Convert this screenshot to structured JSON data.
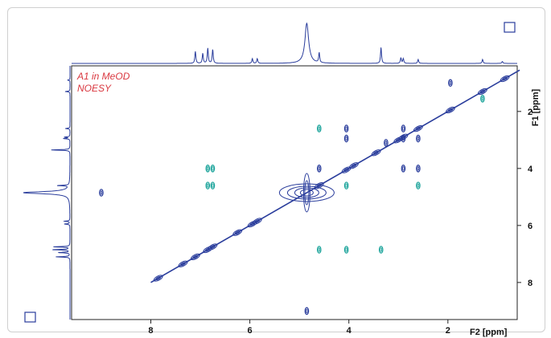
{
  "chart_data": {
    "type": "contour",
    "title": [
      "A1 in MeOD",
      "NOESY"
    ],
    "xlabel": "F2 [ppm]",
    "ylabel": "F1 [ppm]",
    "xlim": [
      9.6,
      0.6
    ],
    "ylim": [
      0.4,
      9.3
    ],
    "x_ticks": [
      8,
      6,
      4,
      2
    ],
    "y_ticks": [
      2,
      4,
      6,
      8
    ],
    "diagonal_color": "#2a3d9c",
    "positive_color": "#2a3d9c",
    "negative_color": "#1aa39a",
    "projection_color": "#2a3d9c",
    "diagonal_peaks": [
      {
        "x": 7.85,
        "y": 7.85
      },
      {
        "x": 7.35,
        "y": 7.35
      },
      {
        "x": 7.1,
        "y": 7.1
      },
      {
        "x": 6.85,
        "y": 6.85
      },
      {
        "x": 6.75,
        "y": 6.75
      },
      {
        "x": 6.25,
        "y": 6.25
      },
      {
        "x": 5.95,
        "y": 5.95
      },
      {
        "x": 5.85,
        "y": 5.85
      },
      {
        "x": 4.85,
        "y": 4.85
      },
      {
        "x": 4.6,
        "y": 4.6
      },
      {
        "x": 4.05,
        "y": 4.05
      },
      {
        "x": 3.9,
        "y": 3.9
      },
      {
        "x": 3.45,
        "y": 3.45
      },
      {
        "x": 3.0,
        "y": 3.0
      },
      {
        "x": 2.9,
        "y": 2.9
      },
      {
        "x": 2.6,
        "y": 2.6
      },
      {
        "x": 1.95,
        "y": 1.95
      },
      {
        "x": 1.3,
        "y": 1.3
      },
      {
        "x": 0.85,
        "y": 0.85
      }
    ],
    "cross_peaks": [
      {
        "x": 4.6,
        "y": 2.6,
        "sign": "negative"
      },
      {
        "x": 4.05,
        "y": 2.6,
        "sign": "positive"
      },
      {
        "x": 4.05,
        "y": 2.95,
        "sign": "positive"
      },
      {
        "x": 2.9,
        "y": 2.6,
        "sign": "positive"
      },
      {
        "x": 2.9,
        "y": 2.95,
        "sign": "positive"
      },
      {
        "x": 2.6,
        "y": 2.95,
        "sign": "positive"
      },
      {
        "x": 3.25,
        "y": 3.1,
        "sign": "positive"
      },
      {
        "x": 6.85,
        "y": 4.0,
        "sign": "negative"
      },
      {
        "x": 6.75,
        "y": 4.0,
        "sign": "negative"
      },
      {
        "x": 6.85,
        "y": 4.6,
        "sign": "negative"
      },
      {
        "x": 6.75,
        "y": 4.6,
        "sign": "negative"
      },
      {
        "x": 4.6,
        "y": 4.0,
        "sign": "positive"
      },
      {
        "x": 4.05,
        "y": 4.6,
        "sign": "negative"
      },
      {
        "x": 2.9,
        "y": 4.0,
        "sign": "positive"
      },
      {
        "x": 2.6,
        "y": 4.0,
        "sign": "positive"
      },
      {
        "x": 2.6,
        "y": 4.6,
        "sign": "negative"
      },
      {
        "x": 4.6,
        "y": 6.85,
        "sign": "negative"
      },
      {
        "x": 4.05,
        "y": 6.85,
        "sign": "negative"
      },
      {
        "x": 3.35,
        "y": 6.85,
        "sign": "negative"
      },
      {
        "x": 9.0,
        "y": 4.85,
        "sign": "positive"
      },
      {
        "x": 4.85,
        "y": 9.0,
        "sign": "positive"
      },
      {
        "x": 1.3,
        "y": 1.55,
        "sign": "negative"
      },
      {
        "x": 1.95,
        "y": 1.0,
        "sign": "positive"
      }
    ],
    "projection_peaks": [
      {
        "ppm": 7.1,
        "height": 0.3
      },
      {
        "ppm": 6.95,
        "height": 0.25
      },
      {
        "ppm": 6.85,
        "height": 0.38
      },
      {
        "ppm": 6.75,
        "height": 0.35
      },
      {
        "ppm": 5.95,
        "height": 0.12
      },
      {
        "ppm": 5.85,
        "height": 0.12
      },
      {
        "ppm": 4.85,
        "height": 1.0
      },
      {
        "ppm": 4.6,
        "height": 0.25
      },
      {
        "ppm": 3.35,
        "height": 0.4
      },
      {
        "ppm": 2.95,
        "height": 0.14
      },
      {
        "ppm": 2.9,
        "height": 0.12
      },
      {
        "ppm": 2.6,
        "height": 0.1
      },
      {
        "ppm": 1.3,
        "height": 0.1
      },
      {
        "ppm": 0.9,
        "height": 0.05
      }
    ]
  }
}
